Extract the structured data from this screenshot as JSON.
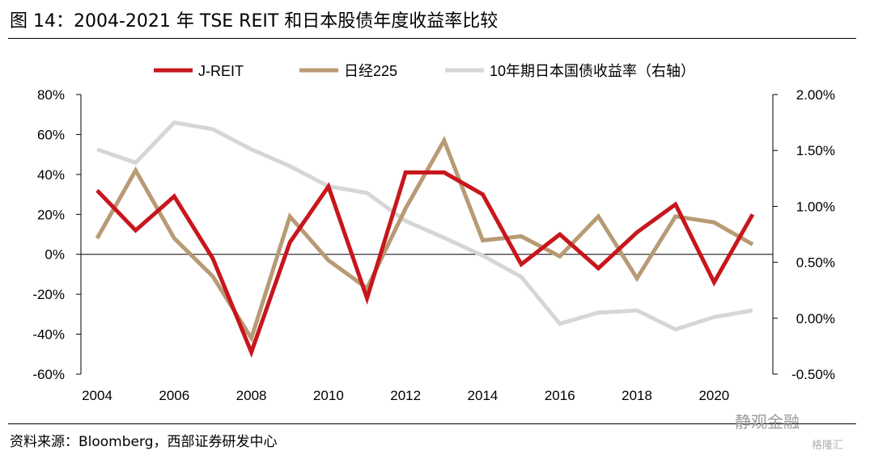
{
  "title": "图 14：2004-2021 年 TSE REIT 和日本股债年度收益率比较",
  "source": "资料来源：Bloomberg，西部证券研发中心",
  "watermark": "静观金融",
  "watermark2": "格隆汇",
  "chart_data": {
    "type": "line",
    "x": [
      2004,
      2005,
      2006,
      2007,
      2008,
      2009,
      2010,
      2011,
      2012,
      2013,
      2014,
      2015,
      2016,
      2017,
      2018,
      2019,
      2020,
      2021
    ],
    "x_tick_labels": [
      "2004",
      "2006",
      "2008",
      "2010",
      "2012",
      "2014",
      "2016",
      "2018",
      "2020"
    ],
    "y_left": {
      "range": [
        -60,
        80
      ],
      "tick_labels": [
        "80%",
        "60%",
        "40%",
        "20%",
        "0%",
        "-20%",
        "-40%",
        "-60%"
      ]
    },
    "y_right": {
      "range": [
        -0.5,
        2.0
      ],
      "tick_labels": [
        "2.00%",
        "1.50%",
        "1.00%",
        "0.50%",
        "0.00%",
        "-0.50%"
      ]
    },
    "legend_position": "top",
    "series": [
      {
        "name": "J-REIT",
        "axis": "left",
        "color": "#c8161d",
        "values": [
          32,
          12,
          29,
          -2,
          -49,
          6,
          34,
          -22,
          41,
          41,
          30,
          -5,
          10,
          -7,
          11,
          25,
          -14,
          20
        ]
      },
      {
        "name": "日经225",
        "axis": "left",
        "color": "#b89a74",
        "values": [
          8,
          42,
          8,
          -11,
          -42,
          19,
          -3,
          -17,
          23,
          57,
          7,
          9,
          -1,
          19,
          -12,
          19,
          16,
          5
        ]
      },
      {
        "name": "10年期日本国债收益率（右轴）",
        "axis": "right",
        "color": "#d6d6d6",
        "values": [
          1.51,
          1.39,
          1.75,
          1.69,
          1.51,
          1.36,
          1.18,
          1.12,
          0.87,
          0.72,
          0.56,
          0.37,
          -0.05,
          0.05,
          0.07,
          -0.1,
          0.01,
          0.07
        ]
      }
    ]
  }
}
